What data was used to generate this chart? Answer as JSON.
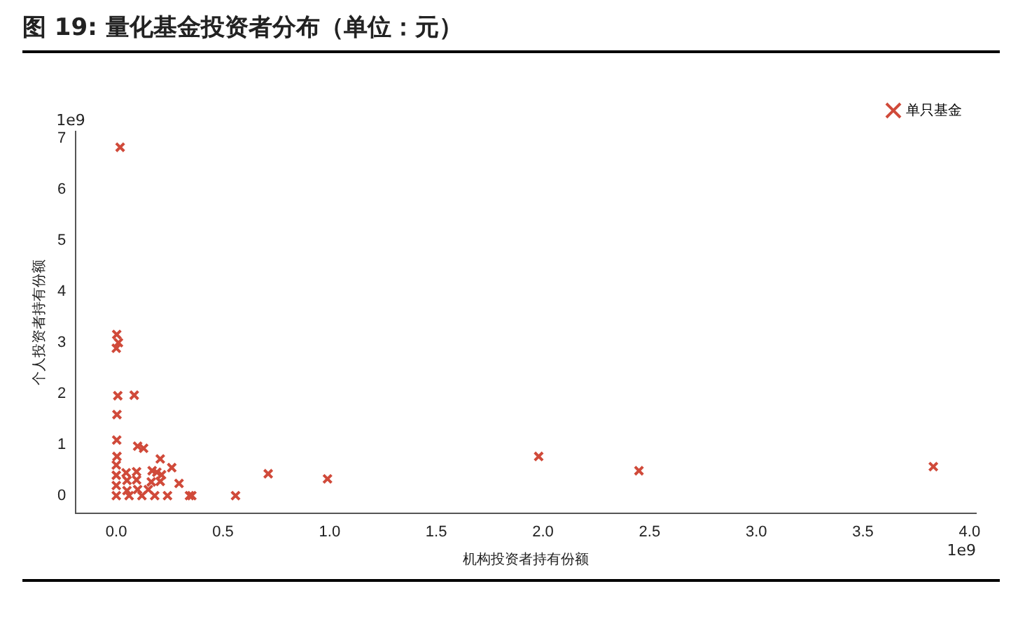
{
  "chart_data": {
    "type": "scatter",
    "title": "图 19:  量化基金投资者分布（单位：元）",
    "xlabel": "机构投资者持有份额",
    "ylabel": "个人投资者持有份额",
    "annotations": [
      "1e9",
      "1e9"
    ],
    "xlim": [
      -0.19,
      4.03
    ],
    "ylim": [
      -0.34,
      7.14
    ],
    "xticks": [
      {
        "value": 0,
        "label": "0.0"
      },
      0.5,
      {
        "value": 1,
        "label": "1.0"
      },
      1.5,
      {
        "value": 2,
        "label": "2.0"
      },
      2.5,
      {
        "value": 3,
        "label": "3.0"
      },
      3.5,
      {
        "value": 4,
        "label": "4.0"
      }
    ],
    "yticks": [
      0,
      1,
      2,
      3,
      4,
      5,
      6,
      7
    ],
    "grid": false,
    "legend": "top right",
    "marker": "cross",
    "series": [
      {
        "name": "单只基金",
        "color": "#d04a3a",
        "x": [
          0.018,
          0.002,
          0.01,
          0.0,
          0.007,
          0.084,
          0.003,
          0.002,
          0.003,
          0.1,
          0.128,
          0.206,
          0.26,
          0.168,
          0.19,
          0.212,
          0.095,
          0.046,
          0.095,
          0.164,
          0.206,
          0.294,
          0.343,
          0.354,
          0.559,
          0.712,
          0.99,
          1.98,
          2.45,
          3.83,
          0.0,
          0.0,
          0.0,
          0.0,
          0.05,
          0.05,
          0.1,
          0.06,
          0.12,
          0.18,
          0.24,
          0.15
        ],
        "values": [
          6.83,
          3.16,
          3.0,
          2.89,
          1.96,
          1.97,
          1.59,
          1.09,
          0.77,
          0.97,
          0.93,
          0.72,
          0.55,
          0.49,
          0.46,
          0.41,
          0.47,
          0.45,
          0.31,
          0.27,
          0.28,
          0.24,
          0.0,
          0.0,
          0.0,
          0.43,
          0.33,
          0.77,
          0.49,
          0.57,
          0.0,
          0.2,
          0.4,
          0.6,
          0.1,
          0.3,
          0.12,
          0.0,
          0.0,
          0.0,
          0.0,
          0.12
        ]
      }
    ]
  }
}
